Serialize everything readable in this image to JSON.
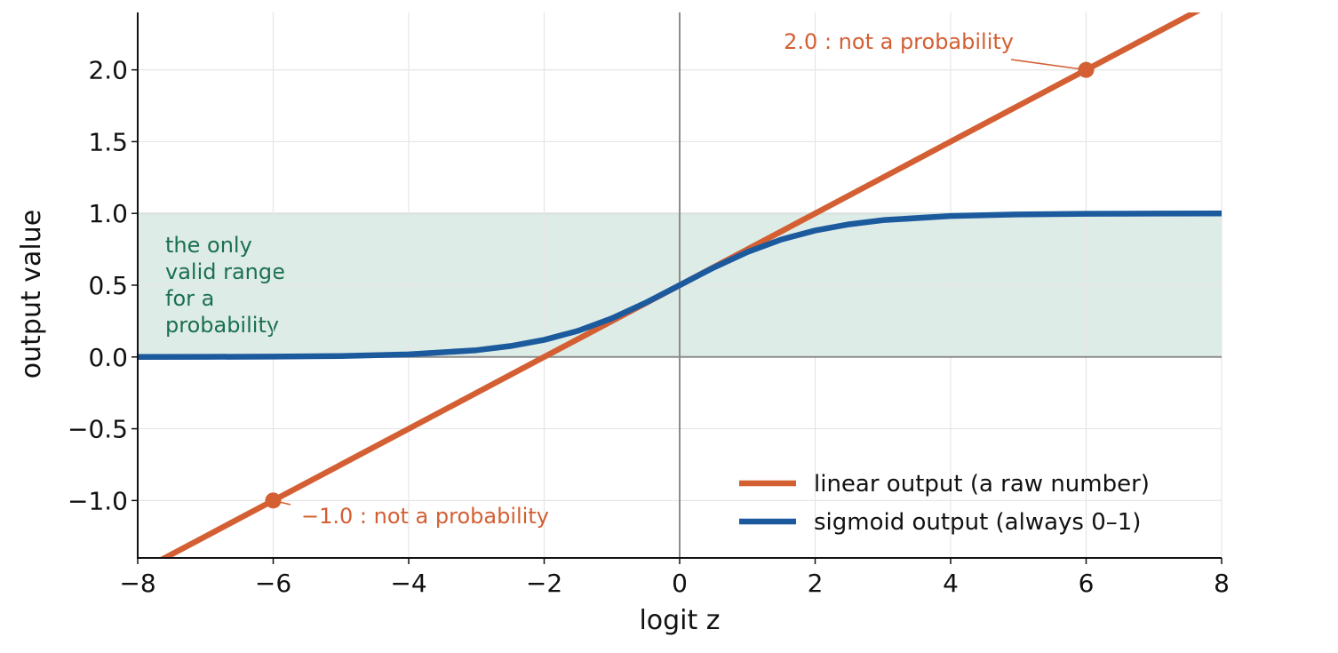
{
  "chart_data": {
    "type": "line",
    "xlabel": "logit  z",
    "ylabel": "output value",
    "xlim": [
      -8,
      8
    ],
    "ylim": [
      -1.4,
      2.4
    ],
    "x_ticks": [
      {
        "value": -8,
        "label": "−8"
      },
      {
        "value": -6,
        "label": "−6"
      },
      {
        "value": -4,
        "label": "−4"
      },
      {
        "value": -2,
        "label": "−2"
      },
      {
        "value": 0,
        "label": "0"
      },
      {
        "value": 2,
        "label": "2"
      },
      {
        "value": 4,
        "label": "4"
      },
      {
        "value": 6,
        "label": "6"
      },
      {
        "value": 8,
        "label": "8"
      }
    ],
    "y_ticks": [
      {
        "value": 2.0,
        "label": "2.0"
      },
      {
        "value": 1.5,
        "label": "1.5"
      },
      {
        "value": 1.0,
        "label": "1.0"
      },
      {
        "value": 0.5,
        "label": "0.5"
      },
      {
        "value": 0.0,
        "label": "0.0"
      },
      {
        "value": -0.5,
        "label": "−0.5"
      },
      {
        "value": -1.0,
        "label": "−1.0"
      }
    ],
    "grid": true,
    "shaded_band": {
      "y_min": 0.0,
      "y_max": 1.0,
      "color": "#deece7",
      "label": "the only\nvalid range\nfor a\nprobability",
      "label_color": "#1a7050"
    },
    "series": [
      {
        "name": "linear output  (a raw number)",
        "color": "#d35f33",
        "x": [
          -8,
          -6,
          -4,
          -2,
          0,
          2,
          4,
          6,
          8
        ],
        "y": [
          -1.5,
          -1.0,
          -0.5,
          0.0,
          0.5,
          1.0,
          1.5,
          2.0,
          2.5
        ]
      },
      {
        "name": "sigmoid output  (always 0–1)",
        "color": "#1c5a9e",
        "x": [
          -8,
          -7,
          -6,
          -5,
          -4,
          -3,
          -2.5,
          -2,
          -1.5,
          -1,
          -0.5,
          0,
          0.5,
          1,
          1.5,
          2,
          2.5,
          3,
          4,
          5,
          6,
          7,
          8
        ],
        "y": [
          0.0003,
          0.0009,
          0.0025,
          0.0067,
          0.018,
          0.047,
          0.076,
          0.119,
          0.182,
          0.269,
          0.378,
          0.5,
          0.622,
          0.731,
          0.818,
          0.881,
          0.924,
          0.953,
          0.982,
          0.993,
          0.9975,
          0.9991,
          0.9997
        ]
      }
    ],
    "annotations": [
      {
        "text": "2.0 : not a probability",
        "point": [
          6,
          2.0
        ],
        "color": "#d35f33"
      },
      {
        "text": "−1.0 : not a probability",
        "point": [
          -6,
          -1.0
        ],
        "color": "#d35f33"
      }
    ],
    "legend_position": "lower-right"
  }
}
